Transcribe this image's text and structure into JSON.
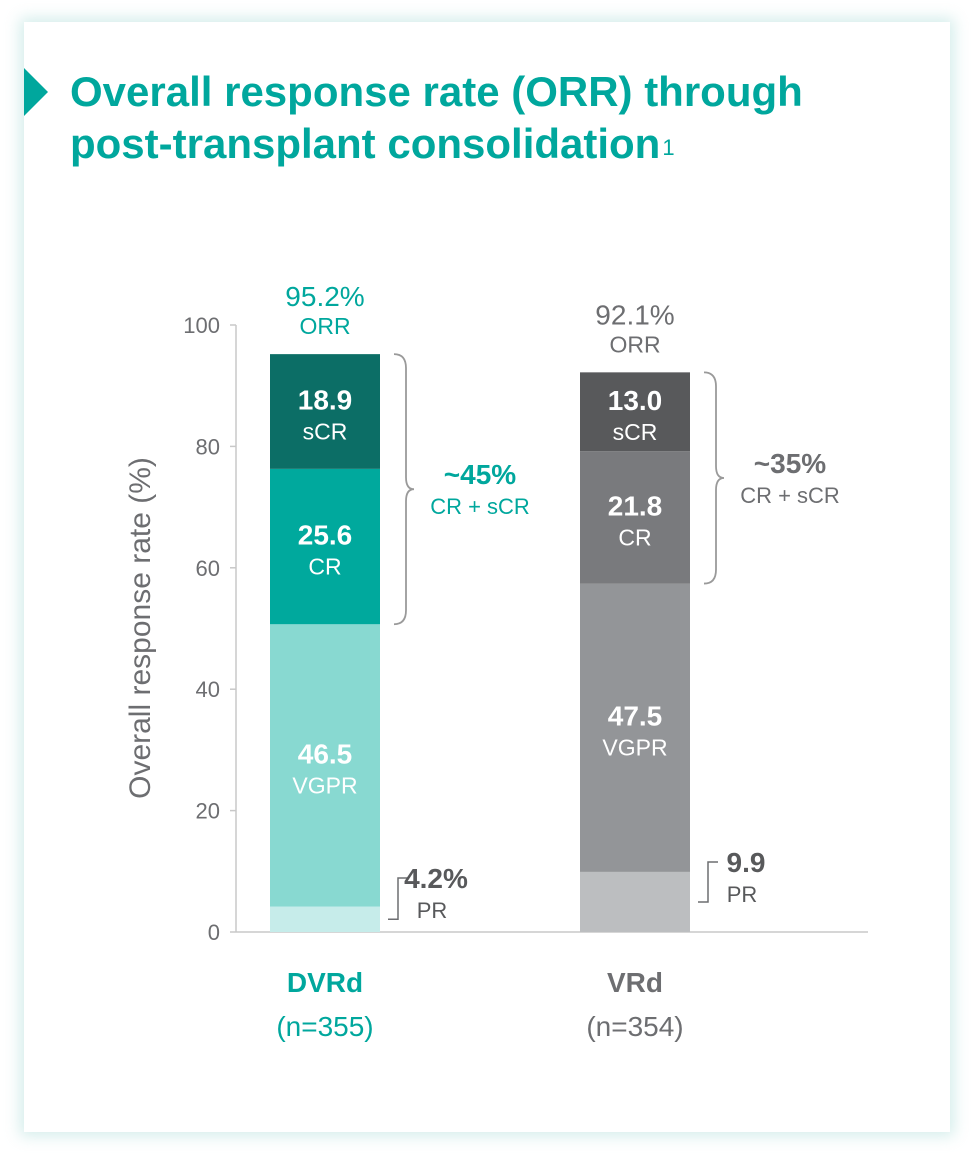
{
  "title": {
    "text": "Overall response rate (ORR) through post-transplant consolidation",
    "footnote": "1"
  },
  "colors": {
    "teal_title": "#00a79d",
    "dvrd_scr": "#0c6e66",
    "dvrd_cr": "#00a99d",
    "dvrd_vgpr": "#88d9d1",
    "dvrd_pr": "#c6ecea",
    "vrd_scr": "#58595b",
    "vrd_cr": "#797a7d",
    "vrd_vgpr": "#939598",
    "vrd_pr": "#bcbec0"
  },
  "chart_data": {
    "type": "bar",
    "stacked": true,
    "categories": [
      "DVRd",
      "VRd"
    ],
    "category_subtitles": [
      "(n=355)",
      "(n=354)"
    ],
    "ylabel": "Overall response rate (%)",
    "ylim": [
      0,
      100
    ],
    "yticks": [
      0,
      20,
      40,
      60,
      80,
      100
    ],
    "series": [
      {
        "name": "PR",
        "values": [
          4.2,
          9.9
        ],
        "labels": [
          "4.2%",
          "9.9"
        ]
      },
      {
        "name": "VGPR",
        "values": [
          46.5,
          47.5
        ],
        "labels": [
          "46.5",
          "47.5"
        ]
      },
      {
        "name": "CR",
        "values": [
          25.6,
          21.8
        ],
        "labels": [
          "25.6",
          "21.8"
        ]
      },
      {
        "name": "sCR",
        "values": [
          18.9,
          13.0
        ],
        "labels": [
          "18.9",
          "13.0"
        ]
      }
    ],
    "totals": [
      {
        "value": "95.2%",
        "label": "ORR"
      },
      {
        "value": "92.1%",
        "label": "ORR"
      }
    ],
    "brackets": [
      {
        "value": "~45%",
        "label": "CR + sCR"
      },
      {
        "value": "~35%",
        "label": "CR + sCR"
      }
    ]
  }
}
